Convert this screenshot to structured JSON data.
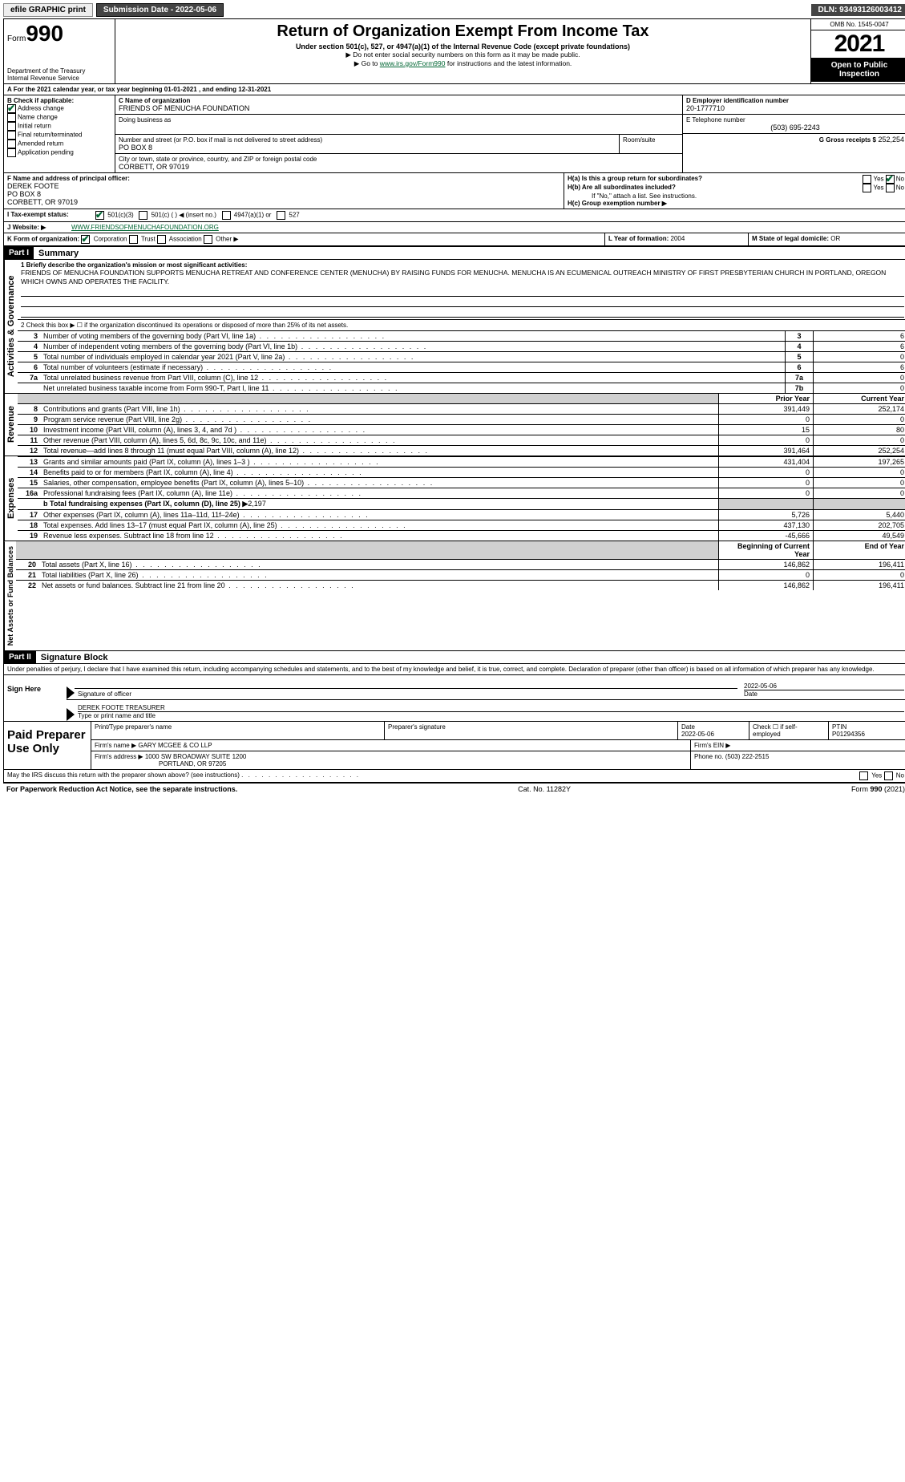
{
  "top": {
    "efile": "efile GRAPHIC print",
    "submission": "Submission Date - 2022-05-06",
    "dln": "DLN: 93493126003412"
  },
  "header": {
    "form_prefix": "Form",
    "form_num": "990",
    "dept": "Department of the Treasury",
    "irs": "Internal Revenue Service",
    "title": "Return of Organization Exempt From Income Tax",
    "sub": "Under section 501(c), 527, or 4947(a)(1) of the Internal Revenue Code (except private foundations)",
    "note1": "▶ Do not enter social security numbers on this form as it may be made public.",
    "note2_pre": "▶ Go to ",
    "note2_link": "www.irs.gov/Form990",
    "note2_post": " for instructions and the latest information.",
    "omb": "OMB No. 1545-0047",
    "year": "2021",
    "open": "Open to Public Inspection"
  },
  "a_line": {
    "prefix": "A For the 2021 calendar year, or tax year beginning ",
    "begin": "01-01-2021",
    "mid": " , and ending ",
    "end": "12-31-2021"
  },
  "b": {
    "label": "B Check if applicable:",
    "addr": "Address change",
    "name": "Name change",
    "init": "Initial return",
    "final": "Final return/terminated",
    "amend": "Amended return",
    "app": "Application pending"
  },
  "c": {
    "label": "C Name of organization",
    "name": "FRIENDS OF MENUCHA FOUNDATION",
    "dba_label": "Doing business as",
    "street_label": "Number and street (or P.O. box if mail is not delivered to street address)",
    "room_label": "Room/suite",
    "street": "PO BOX 8",
    "city_label": "City or town, state or province, country, and ZIP or foreign postal code",
    "city": "CORBETT, OR  97019"
  },
  "d": {
    "label": "D Employer identification number",
    "val": "20-1777710"
  },
  "e": {
    "label": "E Telephone number",
    "val": "(503) 695-2243"
  },
  "g": {
    "label": "G Gross receipts $",
    "val": "252,254"
  },
  "f": {
    "label": "F Name and address of principal officer:",
    "name": "DEREK FOOTE",
    "street": "PO BOX 8",
    "city": "CORBETT, OR  97019"
  },
  "h": {
    "a": "H(a)  Is this a group return for subordinates?",
    "b": "H(b)  Are all subordinates included?",
    "b_note": "If \"No,\" attach a list. See instructions.",
    "c": "H(c)  Group exemption number ▶",
    "yes": "Yes",
    "no": "No"
  },
  "i": {
    "label": "I  Tax-exempt status:",
    "o1": "501(c)(3)",
    "o2": "501(c) (   ) ◀ (insert no.)",
    "o3": "4947(a)(1) or",
    "o4": "527"
  },
  "j": {
    "label": "J  Website: ▶",
    "val": "WWW.FRIENDSOFMENUCHAFOUNDATION.ORG"
  },
  "k": {
    "label": "K Form of organization:",
    "corp": "Corporation",
    "trust": "Trust",
    "assoc": "Association",
    "other": "Other ▶"
  },
  "l": {
    "label": "L Year of formation:",
    "val": "2004"
  },
  "m": {
    "label": "M State of legal domicile:",
    "val": "OR"
  },
  "part1": {
    "num": "Part I",
    "title": "Summary"
  },
  "part2": {
    "num": "Part II",
    "title": "Signature Block"
  },
  "vtabs": {
    "ag": "Activities & Governance",
    "rev": "Revenue",
    "exp": "Expenses",
    "net": "Net Assets or Fund Balances"
  },
  "line1": {
    "label": "1  Briefly describe the organization's mission or most significant activities:",
    "text": "FRIENDS OF MENUCHA FOUNDATION SUPPORTS MENUCHA RETREAT AND CONFERENCE CENTER (MENUCHA) BY RAISING FUNDS FOR MENUCHA. MENUCHA IS AN ECUMENICAL OUTREACH MINISTRY OF FIRST PRESBYTERIAN CHURCH IN PORTLAND, OREGON WHICH OWNS AND OPERATES THE FACILITY."
  },
  "line2": "2  Check this box ▶ ☐  if the organization discontinued its operations or disposed of more than 25% of its net assets.",
  "lines_ag": [
    {
      "n": "3",
      "t": "Number of voting members of the governing body (Part VI, line 1a)",
      "b": "3",
      "v": "6"
    },
    {
      "n": "4",
      "t": "Number of independent voting members of the governing body (Part VI, line 1b)",
      "b": "4",
      "v": "6"
    },
    {
      "n": "5",
      "t": "Total number of individuals employed in calendar year 2021 (Part V, line 2a)",
      "b": "5",
      "v": "0"
    },
    {
      "n": "6",
      "t": "Total number of volunteers (estimate if necessary)",
      "b": "6",
      "v": "6"
    },
    {
      "n": "7a",
      "t": "Total unrelated business revenue from Part VIII, column (C), line 12",
      "b": "7a",
      "v": "0"
    },
    {
      "n": "",
      "t": "Net unrelated business taxable income from Form 990-T, Part I, line 11",
      "b": "7b",
      "v": "0"
    }
  ],
  "col_hdr": {
    "prior": "Prior Year",
    "curr": "Current Year",
    "boy": "Beginning of Current Year",
    "eoy": "End of Year"
  },
  "b_text": "b  Total fundraising expenses (Part IX, column (D), line 25) ▶",
  "b_val": "2,197",
  "lines_rev": [
    {
      "n": "8",
      "t": "Contributions and grants (Part VIII, line 1h)",
      "p": "391,449",
      "c": "252,174"
    },
    {
      "n": "9",
      "t": "Program service revenue (Part VIII, line 2g)",
      "p": "0",
      "c": "0"
    },
    {
      "n": "10",
      "t": "Investment income (Part VIII, column (A), lines 3, 4, and 7d )",
      "p": "15",
      "c": "80"
    },
    {
      "n": "11",
      "t": "Other revenue (Part VIII, column (A), lines 5, 6d, 8c, 9c, 10c, and 11e)",
      "p": "0",
      "c": "0"
    },
    {
      "n": "12",
      "t": "Total revenue—add lines 8 through 11 (must equal Part VIII, column (A), line 12)",
      "p": "391,464",
      "c": "252,254"
    }
  ],
  "lines_exp": [
    {
      "n": "13",
      "t": "Grants and similar amounts paid (Part IX, column (A), lines 1–3 )",
      "p": "431,404",
      "c": "197,265"
    },
    {
      "n": "14",
      "t": "Benefits paid to or for members (Part IX, column (A), line 4)",
      "p": "0",
      "c": "0"
    },
    {
      "n": "15",
      "t": "Salaries, other compensation, employee benefits (Part IX, column (A), lines 5–10)",
      "p": "0",
      "c": "0"
    },
    {
      "n": "16a",
      "t": "Professional fundraising fees (Part IX, column (A), line 11e)",
      "p": "0",
      "c": "0"
    },
    {
      "n": "17",
      "t": "Other expenses (Part IX, column (A), lines 11a–11d, 11f–24e)",
      "p": "5,726",
      "c": "5,440"
    },
    {
      "n": "18",
      "t": "Total expenses. Add lines 13–17 (must equal Part IX, column (A), line 25)",
      "p": "437,130",
      "c": "202,705"
    },
    {
      "n": "19",
      "t": "Revenue less expenses. Subtract line 18 from line 12",
      "p": "-45,666",
      "c": "49,549"
    }
  ],
  "lines_net": [
    {
      "n": "20",
      "t": "Total assets (Part X, line 16)",
      "p": "146,862",
      "c": "196,411"
    },
    {
      "n": "21",
      "t": "Total liabilities (Part X, line 26)",
      "p": "0",
      "c": "0"
    },
    {
      "n": "22",
      "t": "Net assets or fund balances. Subtract line 21 from line 20",
      "p": "146,862",
      "c": "196,411"
    }
  ],
  "sig_decl": "Under penalties of perjury, I declare that I have examined this return, including accompanying schedules and statements, and to the best of my knowledge and belief, it is true, correct, and complete. Declaration of preparer (other than officer) is based on all information of which preparer has any knowledge.",
  "sign": {
    "here": "Sign Here",
    "sig_label": "Signature of officer",
    "date": "2022-05-06",
    "date_label": "Date",
    "name": "DEREK FOOTE TREASURER",
    "name_label": "Type or print name and title"
  },
  "paid": {
    "title": "Paid Preparer Use Only",
    "h1": "Print/Type preparer's name",
    "h2": "Preparer's signature",
    "h3": "Date",
    "h4": "Check ☐ if self-employed",
    "h5": "PTIN",
    "date": "2022-05-06",
    "ptin": "P01294356",
    "firm_l": "Firm's name    ▶",
    "firm": "GARY MCGEE & CO LLP",
    "ein_l": "Firm's EIN ▶",
    "addr_l": "Firm's address ▶",
    "addr1": "1000 SW BROADWAY SUITE 1200",
    "addr2": "PORTLAND, OR  97205",
    "phone_l": "Phone no.",
    "phone": "(503) 222-2515"
  },
  "may_irs": "May the IRS discuss this return with the preparer shown above? (see instructions)",
  "footer": {
    "l": "For Paperwork Reduction Act Notice, see the separate instructions.",
    "c": "Cat. No. 11282Y",
    "r": "Form 990 (2021)"
  }
}
